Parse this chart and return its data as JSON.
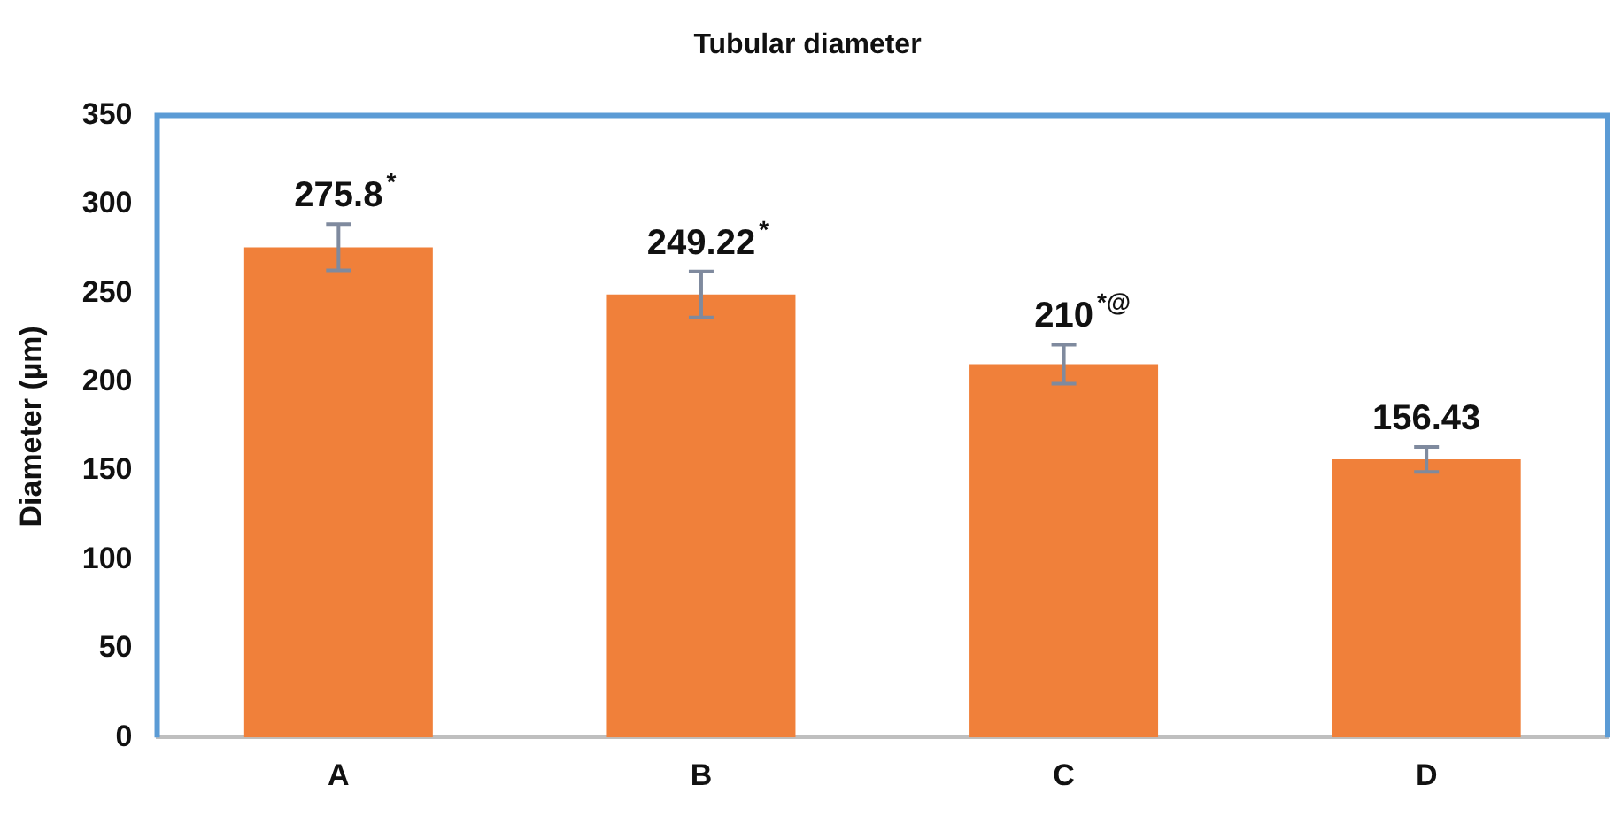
{
  "chart_data": {
    "type": "bar",
    "title": "Tubular diameter",
    "ylabel": "Diameter (µm)",
    "categories": [
      "A",
      "B",
      "C",
      "D"
    ],
    "values": [
      275.8,
      249.22,
      210,
      156.43
    ],
    "errors": [
      13,
      13,
      11,
      7
    ],
    "value_labels": [
      "275.8$^{*}$",
      "249.22$^{*}$",
      "210$^{*@}$",
      "156.43"
    ],
    "color": "#f0803a",
    "ylim": [
      0,
      350
    ],
    "yticks": [
      0,
      50,
      100,
      150,
      200,
      250,
      300,
      350
    ],
    "grid": false,
    "legend": false
  }
}
